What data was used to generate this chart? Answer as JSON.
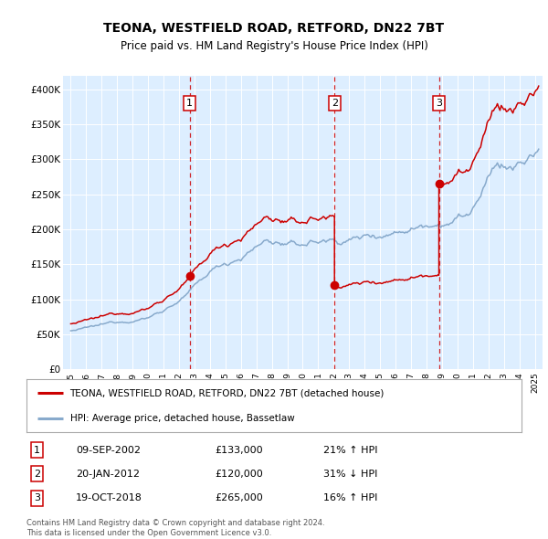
{
  "title": "TEONA, WESTFIELD ROAD, RETFORD, DN22 7BT",
  "subtitle": "Price paid vs. HM Land Registry's House Price Index (HPI)",
  "plot_bg_color": "#ddeeff",
  "ylim": [
    0,
    420000
  ],
  "yticks": [
    0,
    50000,
    100000,
    150000,
    200000,
    250000,
    300000,
    350000,
    400000
  ],
  "ytick_labels": [
    "£0",
    "£50K",
    "£100K",
    "£150K",
    "£200K",
    "£250K",
    "£300K",
    "£350K",
    "£400K"
  ],
  "sale_color": "#cc0000",
  "hpi_color": "#88aacc",
  "sale_label": "TEONA, WESTFIELD ROAD, RETFORD, DN22 7BT (detached house)",
  "hpi_label": "HPI: Average price, detached house, Bassetlaw",
  "transactions": [
    {
      "num": 1,
      "date": "09-SEP-2002",
      "price": 133000,
      "pct": "21%",
      "dir": "↑",
      "year_x": 2002.69
    },
    {
      "num": 2,
      "date": "20-JAN-2012",
      "price": 120000,
      "pct": "31%",
      "dir": "↓",
      "year_x": 2012.05
    },
    {
      "num": 3,
      "date": "19-OCT-2018",
      "price": 265000,
      "pct": "16%",
      "dir": "↑",
      "year_x": 2018.8
    }
  ],
  "footer": "Contains HM Land Registry data © Crown copyright and database right 2024.\nThis data is licensed under the Open Government Licence v3.0.",
  "xstart": 1994.5,
  "xend": 2025.5,
  "xtick_start": 1995,
  "xtick_end": 2025
}
